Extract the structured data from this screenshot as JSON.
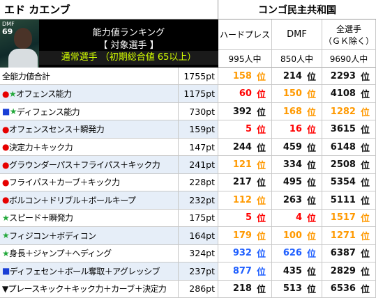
{
  "header": {
    "player_name": "エド カエンブ",
    "country": "コンゴ民主共和国",
    "card": {
      "position": "DMF",
      "rating": "69"
    },
    "panel": {
      "title": "能力値ランキング",
      "subtitle": "【 対象選手 】",
      "condition": "通常選手 （初期総合値 65以上）"
    }
  },
  "columns": [
    {
      "label": [
        "ハードプレス"
      ],
      "total": "995人中"
    },
    {
      "label": [
        "DMF"
      ],
      "total": "850人中"
    },
    {
      "label": [
        "全選手",
        "（ＧＫ除く）"
      ],
      "total": "9690人中"
    }
  ],
  "rank_suffix": "位",
  "rows": [
    {
      "label": "全能力値合計",
      "points": "1755pt",
      "ranks": [
        {
          "value": 158,
          "color": "#ff9900"
        },
        {
          "value": 214
        },
        {
          "value": 2293
        }
      ]
    },
    {
      "markers": [
        {
          "symbol": "●",
          "color": "#e60000"
        },
        {
          "symbol": "★",
          "color": "#22a83a"
        }
      ],
      "label": "オフェンス能力",
      "points": "1175pt",
      "ranks": [
        {
          "value": 60,
          "color": "#ff0000"
        },
        {
          "value": 150,
          "color": "#ff9900"
        },
        {
          "value": 4108
        }
      ]
    },
    {
      "markers": [
        {
          "symbol": "■",
          "color": "#1a3fd6"
        },
        {
          "symbol": "★",
          "color": "#22a83a"
        }
      ],
      "label": "ディフェンス能力",
      "points": "730pt",
      "ranks": [
        {
          "value": 392
        },
        {
          "value": 168,
          "color": "#ff9900"
        },
        {
          "value": 1282,
          "color": "#ff9900"
        }
      ]
    },
    {
      "markers": [
        {
          "symbol": "●",
          "color": "#e60000"
        }
      ],
      "label": "オフェンスセンス＋瞬発力",
      "points": "159pt",
      "ranks": [
        {
          "value": 5,
          "color": "#ff0000"
        },
        {
          "value": 16,
          "color": "#ff0000"
        },
        {
          "value": 3615
        }
      ]
    },
    {
      "markers": [
        {
          "symbol": "●",
          "color": "#e60000"
        }
      ],
      "label": "決定力＋キック力",
      "points": "147pt",
      "ranks": [
        {
          "value": 244
        },
        {
          "value": 459
        },
        {
          "value": 6148
        }
      ]
    },
    {
      "markers": [
        {
          "symbol": "●",
          "color": "#e60000"
        }
      ],
      "label": "グラウンダーパス＋フライパス＋キック力",
      "points": "241pt",
      "ranks": [
        {
          "value": 121,
          "color": "#ff9900"
        },
        {
          "value": 334
        },
        {
          "value": 2508
        }
      ]
    },
    {
      "markers": [
        {
          "symbol": "●",
          "color": "#e60000"
        }
      ],
      "label": "フライパス＋カーブ＋キック力",
      "points": "228pt",
      "ranks": [
        {
          "value": 217
        },
        {
          "value": 495
        },
        {
          "value": 5354
        }
      ]
    },
    {
      "markers": [
        {
          "symbol": "●",
          "color": "#e60000"
        }
      ],
      "label": "ボルコン＋ドリブル＋ボールキープ",
      "points": "232pt",
      "ranks": [
        {
          "value": 112,
          "color": "#ff9900"
        },
        {
          "value": 263
        },
        {
          "value": 5111
        }
      ]
    },
    {
      "markers": [
        {
          "symbol": "★",
          "color": "#22a83a"
        }
      ],
      "label": "スピード＋瞬発力",
      "points": "175pt",
      "ranks": [
        {
          "value": 5,
          "color": "#ff0000"
        },
        {
          "value": 4,
          "color": "#ff0000"
        },
        {
          "value": 1517,
          "color": "#ff9900"
        }
      ]
    },
    {
      "markers": [
        {
          "symbol": "★",
          "color": "#22a83a"
        }
      ],
      "label": "フィジコン＋ボディコン",
      "points": "164pt",
      "ranks": [
        {
          "value": 179,
          "color": "#ff9900"
        },
        {
          "value": 100,
          "color": "#ff9900"
        },
        {
          "value": 1271,
          "color": "#ff9900"
        }
      ]
    },
    {
      "markers": [
        {
          "symbol": "★",
          "color": "#22a83a"
        }
      ],
      "label": "身長＋ジャンプ＋ヘディング",
      "points": "324pt",
      "ranks": [
        {
          "value": 932,
          "color": "#1f5fff"
        },
        {
          "value": 626,
          "color": "#1f5fff"
        },
        {
          "value": 6387
        }
      ]
    },
    {
      "markers": [
        {
          "symbol": "■",
          "color": "#1a3fd6"
        }
      ],
      "label": "ディフェセン＋ボール奪取＋アグレッシブ",
      "points": "237pt",
      "ranks": [
        {
          "value": 877,
          "color": "#1f5fff"
        },
        {
          "value": 435
        },
        {
          "value": 2829
        }
      ]
    },
    {
      "markers": [
        {
          "symbol": "▼",
          "color": "#111111"
        }
      ],
      "label": "プレースキック＋キック力＋カーブ＋決定力",
      "points": "286pt",
      "ranks": [
        {
          "value": 218
        },
        {
          "value": 513
        },
        {
          "value": 6536
        }
      ]
    }
  ]
}
